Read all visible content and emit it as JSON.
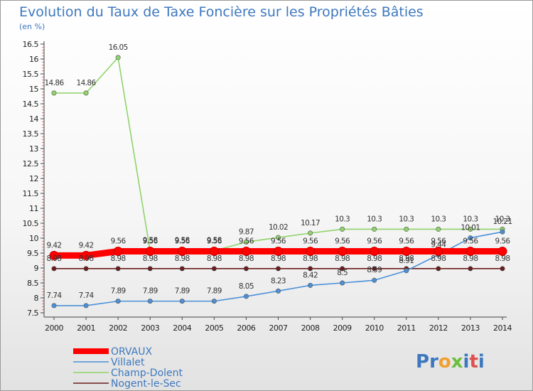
{
  "chart_data": {
    "type": "line",
    "title": "Evolution du Taux de Taxe Foncière sur les Propriétés Bâties",
    "subtitle": "(en %)",
    "xlabel": "",
    "ylabel": "",
    "x": [
      "2000",
      "2001",
      "2002",
      "2003",
      "2004",
      "2005",
      "2006",
      "2007",
      "2008",
      "2009",
      "2010",
      "2011",
      "2012",
      "2013",
      "2014"
    ],
    "ylim": [
      7.5,
      16.5
    ],
    "yticks": [
      "7.5",
      "8",
      "8.5",
      "9",
      "9.5",
      "10",
      "10.5",
      "11",
      "11.5",
      "12",
      "12.5",
      "13",
      "13.5",
      "14",
      "14.5",
      "15",
      "15.5",
      "16",
      "16.5"
    ],
    "series": [
      {
        "name": "ORVAUX",
        "color": "#ff0000",
        "values": [
          9.42,
          9.42,
          9.56,
          9.56,
          9.56,
          9.56,
          9.56,
          9.56,
          9.56,
          9.56,
          9.56,
          9.56,
          9.56,
          9.56,
          9.56
        ],
        "labels": [
          "9.42",
          "9.42",
          "9.56",
          "9.56",
          "9.56",
          "9.56",
          "9.56",
          "9.56",
          "9.56",
          "9.56",
          "9.56",
          "9.56",
          "9.56",
          "9.56",
          "9.56"
        ]
      },
      {
        "name": "Villalet",
        "color": "#4a90d9",
        "values": [
          7.74,
          7.74,
          7.89,
          7.89,
          7.89,
          7.89,
          8.05,
          8.23,
          8.42,
          8.5,
          8.59,
          8.91,
          9.44,
          10.01,
          10.21
        ],
        "labels": [
          "7.74",
          "7.74",
          "7.89",
          "7.89",
          "7.89",
          "7.89",
          "8.05",
          "8.23",
          "8.42",
          "8.5",
          "8.59",
          "8.91",
          "9.44",
          "10.01",
          "10.21"
        ]
      },
      {
        "name": "Champ-Dolent",
        "color": "#8fd46a",
        "values": [
          14.86,
          14.86,
          16.05,
          9.58,
          9.58,
          9.58,
          9.87,
          10.02,
          10.17,
          10.3,
          10.3,
          10.3,
          10.3,
          10.3,
          10.3
        ],
        "labels": [
          "14.86",
          "14.86",
          "16.05",
          "9.58",
          "9.58",
          "9.58",
          "9.87",
          "10.02",
          "10.17",
          "10.3",
          "10.3",
          "10.3",
          "10.3",
          "10.3",
          "10.3"
        ]
      },
      {
        "name": "Nogent-le-Sec",
        "color": "#6b1c1c",
        "values": [
          8.98,
          8.98,
          8.98,
          8.98,
          8.98,
          8.98,
          8.98,
          8.98,
          8.98,
          8.98,
          8.98,
          8.98,
          8.98,
          8.98,
          8.98
        ],
        "labels": [
          "8.98",
          "8.98",
          "8.98",
          "8.98",
          "8.98",
          "8.98",
          "8.98",
          "8.98",
          "8.98",
          "8.98",
          "8.98",
          "8.98",
          "8.98",
          "8.98",
          "8.98"
        ]
      }
    ],
    "legend_position": "bottom-left",
    "grid": false
  },
  "logo": {
    "text": "Proxiti",
    "letters": [
      "P",
      "r",
      "o",
      "x",
      "i",
      "t",
      "i"
    ],
    "colors": [
      "#3d78bf",
      "#3d78bf",
      "#f0a030",
      "#6bbf3a",
      "#3d78bf",
      "#e05050",
      "#3d78bf"
    ]
  }
}
